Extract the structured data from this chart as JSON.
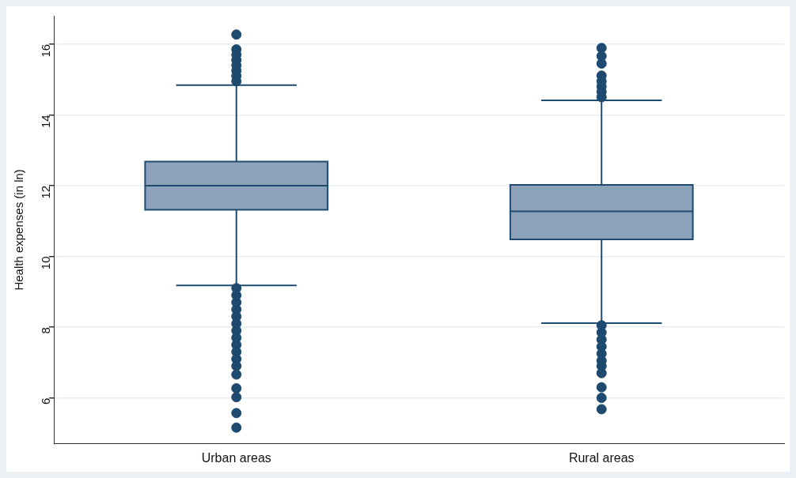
{
  "chart_data": {
    "type": "box",
    "ylabel": "Health expenses (in ln)",
    "categories": [
      "Urban areas",
      "Rural areas"
    ],
    "ylim": [
      4.7,
      16.8
    ],
    "yticks": [
      6,
      8,
      10,
      12,
      14,
      16
    ],
    "grid": "y",
    "legend": false,
    "marker": "circle",
    "series": [
      {
        "color": "#8ca2ba",
        "boxes": [
          {
            "low": 9.18,
            "q1": 11.32,
            "median": 12,
            "q3": 12.68,
            "high": 14.84,
            "outliers": [
              16.27,
              15.85,
              15.7,
              15.55,
              15.4,
              15.25,
              15.1,
              14.95,
              9.1,
              8.9,
              8.7,
              8.5,
              8.3,
              8.1,
              7.9,
              7.7,
              7.5,
              7.3,
              7.1,
              6.9,
              6.66,
              6.27,
              6.02,
              5.57,
              5.16
            ]
          },
          {
            "low": 8.11,
            "q1": 10.48,
            "median": 11.27,
            "q3": 12.02,
            "high": 14.41,
            "outliers": [
              15.89,
              15.66,
              15.45,
              15.11,
              14.95,
              14.8,
              14.65,
              14.5,
              8.05,
              7.85,
              7.65,
              7.45,
              7.25,
              7.05,
              6.9,
              6.7,
              6.3,
              6.0,
              5.68
            ]
          }
        ]
      }
    ]
  }
}
